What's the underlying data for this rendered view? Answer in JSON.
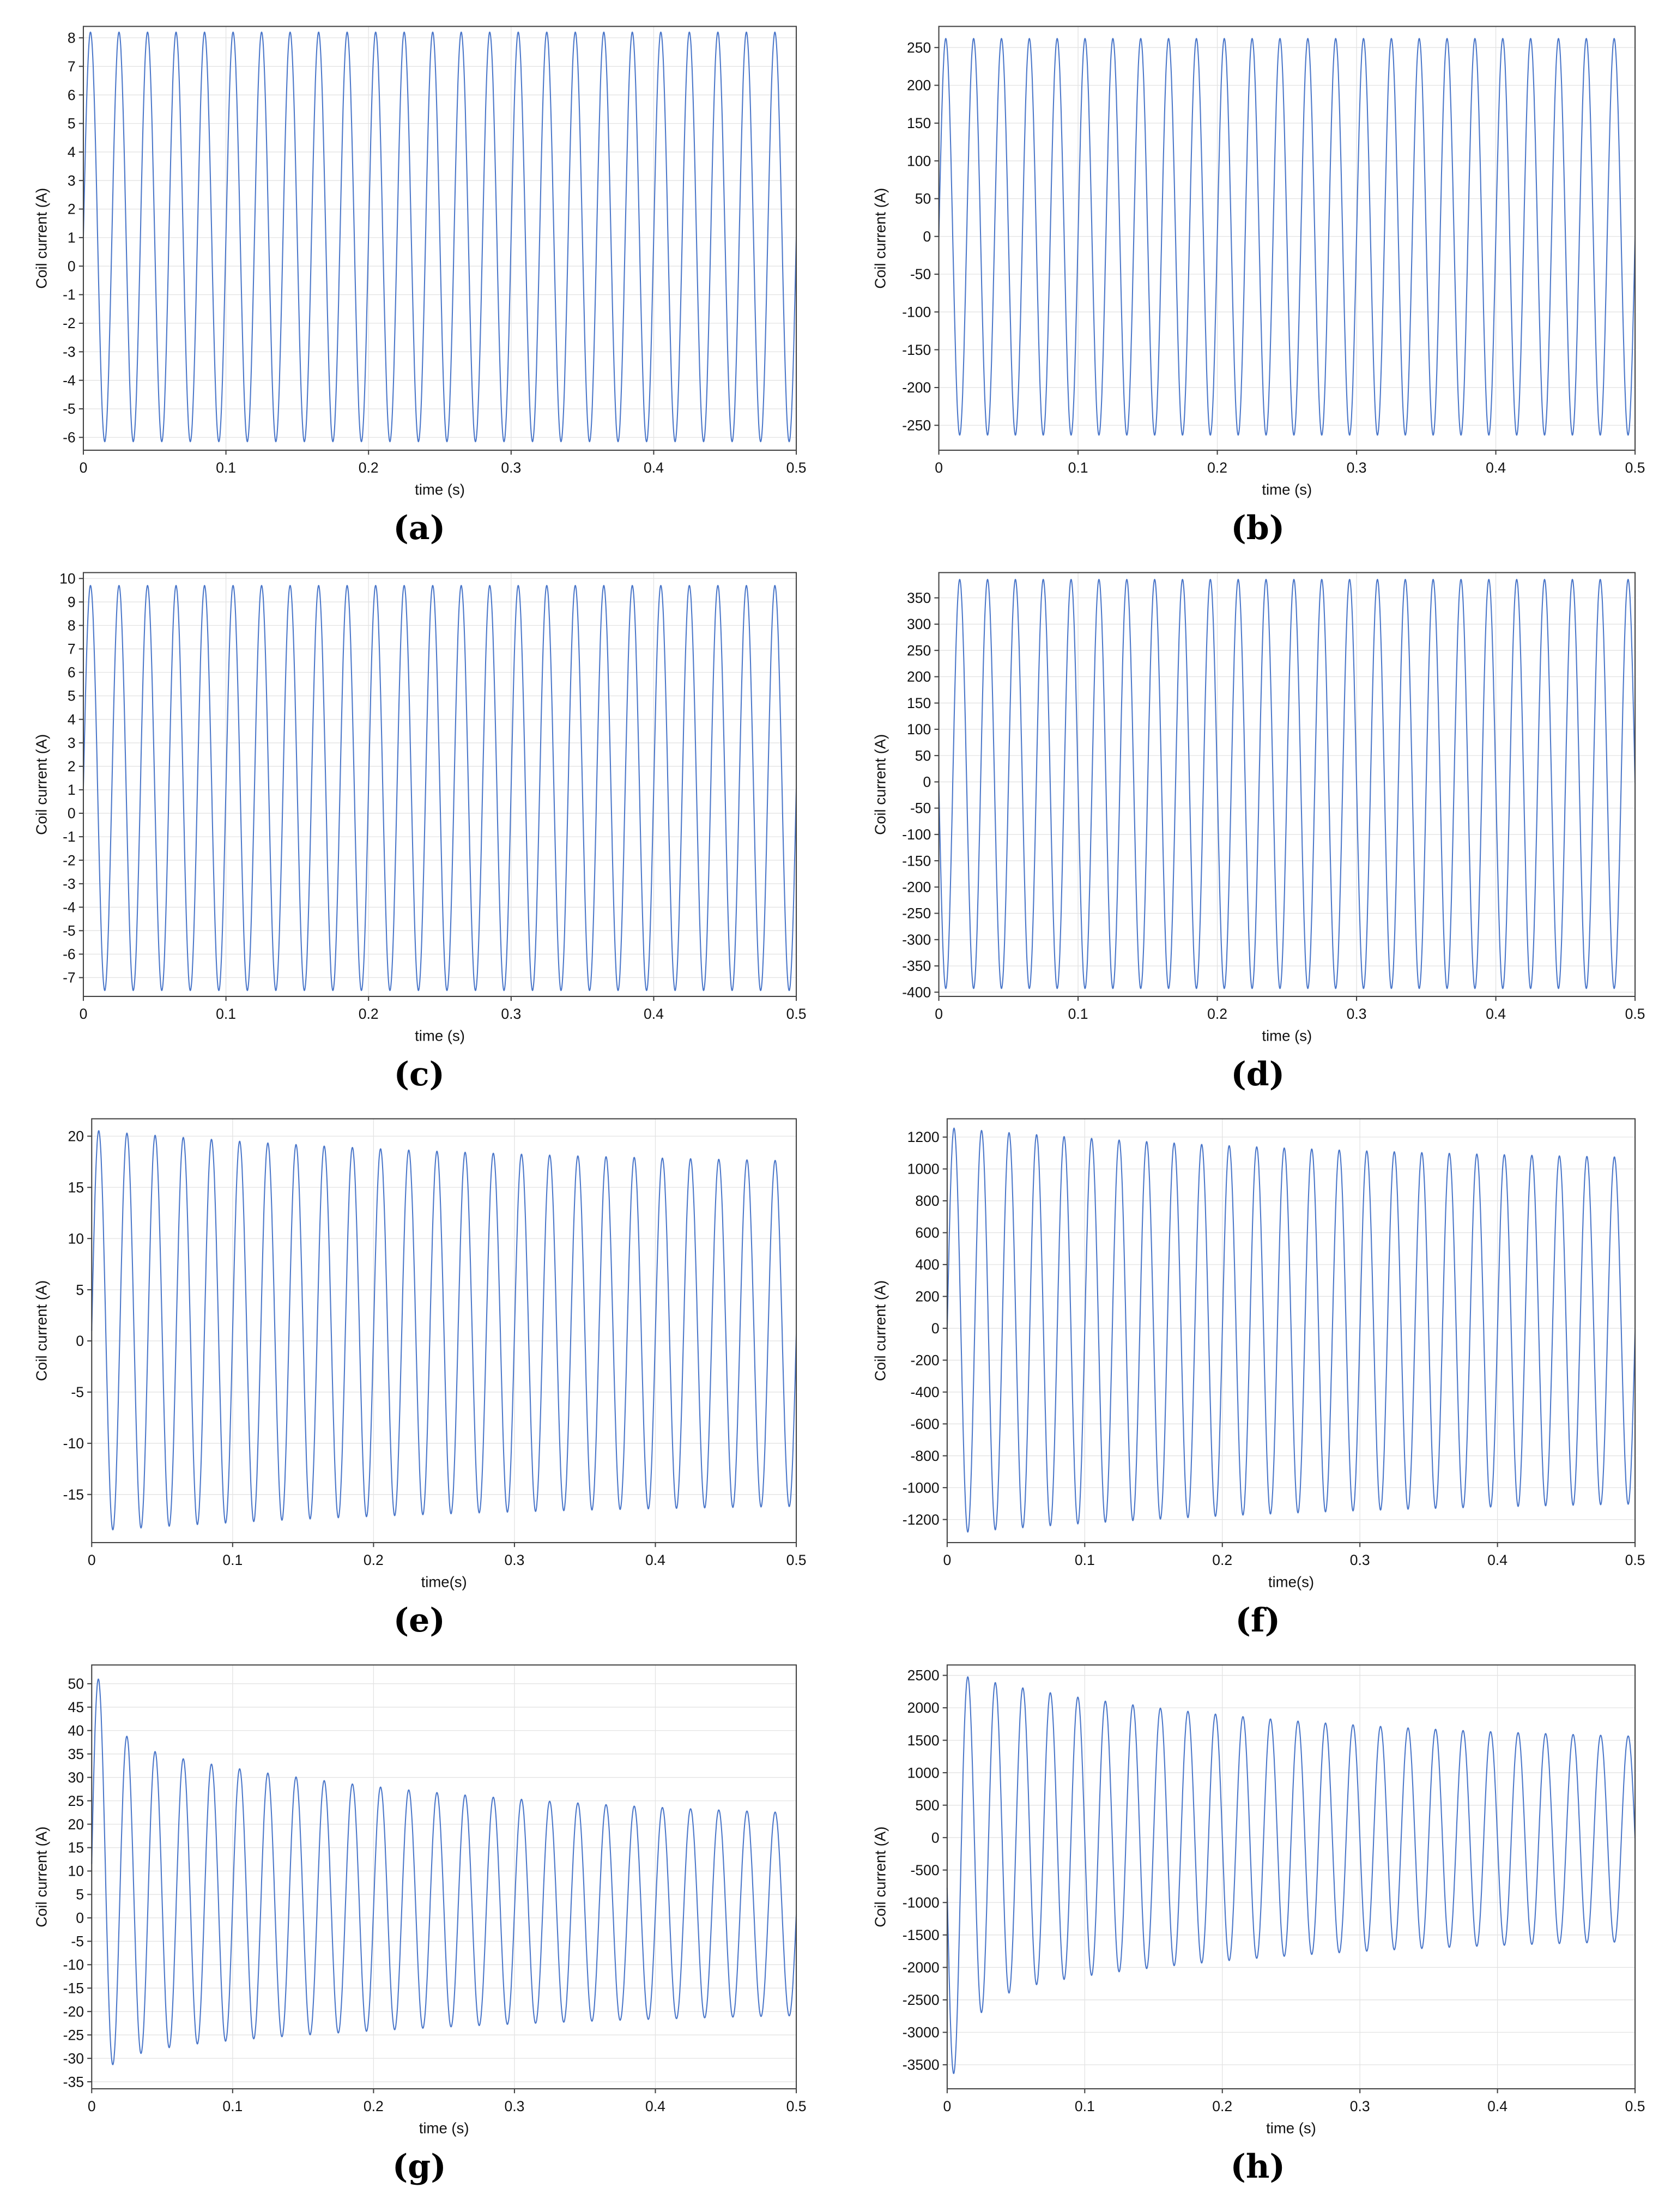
{
  "styles": {
    "line_color": "#4a76c9",
    "grid_color": "#e3e3e3",
    "frame_color": "#404040",
    "text_color": "#111111"
  },
  "chart_data": [
    {
      "id": "a",
      "caption": "(a)",
      "type": "line",
      "title": "",
      "xlabel": "time (s)",
      "ylabel": "Coil current (A)",
      "xlim": [
        0,
        0.5
      ],
      "xticks": [
        0,
        0.1,
        0.2,
        0.3,
        0.4,
        0.5
      ],
      "ylim": [
        -6.45,
        8.4
      ],
      "yticks": [
        -6,
        -5,
        -4,
        -3,
        -2,
        -1,
        0,
        1,
        2,
        3,
        4,
        5,
        6,
        7,
        8
      ],
      "grid": true,
      "legend": false,
      "signal": {
        "waveform": "sine",
        "frequency_hz": 50,
        "phase_deg": 0,
        "pos_envelope": {
          "end": 8.2,
          "terms": []
        },
        "neg_envelope": {
          "end": -6.15,
          "terms": []
        }
      }
    },
    {
      "id": "b",
      "caption": "(b)",
      "type": "line",
      "title": "",
      "xlabel": "time (s)",
      "ylabel": "Coil current (A)",
      "xlim": [
        0,
        0.5
      ],
      "xticks": [
        0,
        0.1,
        0.2,
        0.3,
        0.4,
        0.5
      ],
      "ylim": [
        -283,
        278
      ],
      "yticks": [
        -250,
        -200,
        -150,
        -100,
        -50,
        0,
        50,
        100,
        150,
        200,
        250
      ],
      "grid": true,
      "legend": false,
      "signal": {
        "waveform": "sine",
        "frequency_hz": 50,
        "phase_deg": 0,
        "pos_envelope": {
          "end": 262,
          "terms": []
        },
        "neg_envelope": {
          "end": -263,
          "terms": []
        }
      }
    },
    {
      "id": "c",
      "caption": "(c)",
      "type": "line",
      "title": "",
      "xlabel": "time (s)",
      "ylabel": "Coil current (A)",
      "xlim": [
        0,
        0.5
      ],
      "xticks": [
        0,
        0.1,
        0.2,
        0.3,
        0.4,
        0.5
      ],
      "ylim": [
        -7.8,
        10.25
      ],
      "yticks": [
        -7,
        -6,
        -5,
        -4,
        -3,
        -2,
        -1,
        0,
        1,
        2,
        3,
        4,
        5,
        6,
        7,
        8,
        9,
        10
      ],
      "grid": true,
      "legend": false,
      "signal": {
        "waveform": "sine",
        "frequency_hz": 50,
        "phase_deg": 0,
        "pos_envelope": {
          "end": 9.7,
          "terms": []
        },
        "neg_envelope": {
          "end": -7.55,
          "terms": []
        }
      }
    },
    {
      "id": "d",
      "caption": "(d)",
      "type": "line",
      "title": "",
      "xlabel": "time (s)",
      "ylabel": "Coil current (A)",
      "xlim": [
        0,
        0.5
      ],
      "xticks": [
        0,
        0.1,
        0.2,
        0.3,
        0.4,
        0.5
      ],
      "ylim": [
        -408,
        398
      ],
      "yticks": [
        -400,
        -350,
        -300,
        -250,
        -200,
        -150,
        -100,
        -50,
        0,
        50,
        100,
        150,
        200,
        250,
        300,
        350
      ],
      "grid": true,
      "legend": false,
      "signal": {
        "waveform": "sine",
        "frequency_hz": 50,
        "phase_deg": 180,
        "pos_envelope": {
          "end": 385,
          "terms": []
        },
        "neg_envelope": {
          "end": -393,
          "terms": []
        }
      }
    },
    {
      "id": "e",
      "caption": "(e)",
      "type": "line",
      "title": "",
      "xlabel": "time(s)",
      "ylabel": "Coil current (A)",
      "xlim": [
        0,
        0.5
      ],
      "xticks": [
        0,
        0.1,
        0.2,
        0.3,
        0.4,
        0.5
      ],
      "ylim": [
        -19.7,
        21.7
      ],
      "yticks": [
        -15,
        -10,
        -5,
        0,
        5,
        10,
        15,
        20
      ],
      "grid": true,
      "legend": false,
      "signal": {
        "waveform": "damped_sine",
        "frequency_hz": 50,
        "phase_deg": 0,
        "pos_envelope": {
          "end": 16.9,
          "terms": [
            {
              "amp": 3.7,
              "tau": 0.3
            }
          ]
        },
        "neg_envelope": {
          "end": -15.6,
          "terms": [
            {
              "amp": -3.0,
              "tau": 0.3
            }
          ]
        }
      }
    },
    {
      "id": "f",
      "caption": "(f)",
      "type": "line",
      "title": "",
      "xlabel": "time(s)",
      "ylabel": "Coil current (A)",
      "xlim": [
        0,
        0.5
      ],
      "xticks": [
        0,
        0.1,
        0.2,
        0.3,
        0.4,
        0.5
      ],
      "ylim": [
        -1345,
        1315
      ],
      "yticks": [
        -1200,
        -1000,
        -800,
        -600,
        -400,
        -200,
        0,
        200,
        400,
        600,
        800,
        1000,
        1200
      ],
      "grid": true,
      "legend": false,
      "signal": {
        "waveform": "damped_sine",
        "frequency_hz": 50,
        "phase_deg": 0,
        "pos_envelope": {
          "end": 1030,
          "terms": [
            {
              "amp": 230,
              "tau": 0.3
            }
          ]
        },
        "neg_envelope": {
          "end": -1060,
          "terms": [
            {
              "amp": -230,
              "tau": 0.3
            }
          ]
        }
      }
    },
    {
      "id": "g",
      "caption": "(g)",
      "type": "line",
      "title": "",
      "xlabel": "time (s)",
      "ylabel": "Coil current (A)",
      "xlim": [
        0,
        0.5
      ],
      "xticks": [
        0,
        0.1,
        0.2,
        0.3,
        0.4,
        0.5
      ],
      "ylim": [
        -36.5,
        54
      ],
      "yticks": [
        -35,
        -30,
        -25,
        -20,
        -15,
        -10,
        -5,
        0,
        5,
        10,
        15,
        20,
        25,
        30,
        35,
        40,
        45,
        50
      ],
      "grid": true,
      "legend": false,
      "signal": {
        "waveform": "damped_sine",
        "frequency_hz": 50,
        "phase_deg": 0,
        "pos_envelope": {
          "end": 20,
          "terms": [
            {
              "amp": 18,
              "tau": 0.25
            },
            {
              "amp": 20,
              "tau": 0.012
            }
          ]
        },
        "neg_envelope": {
          "end": -19,
          "terms": [
            {
              "amp": -10,
              "tau": 0.3
            },
            {
              "amp": -6,
              "tau": 0.02
            }
          ]
        }
      }
    },
    {
      "id": "h",
      "caption": "(h)",
      "type": "line",
      "title": "",
      "xlabel": "time (s)",
      "ylabel": "Coil current (A)",
      "xlim": [
        0,
        0.5
      ],
      "xticks": [
        0,
        0.1,
        0.2,
        0.3,
        0.4,
        0.5
      ],
      "ylim": [
        -3870,
        2660
      ],
      "yticks": [
        -3500,
        -3000,
        -2500,
        -2000,
        -1500,
        -1000,
        -500,
        0,
        500,
        1000,
        1500,
        2000,
        2500
      ],
      "grid": true,
      "legend": false,
      "signal": {
        "waveform": "damped_sine",
        "frequency_hz": 50,
        "phase_deg": 180,
        "pos_envelope": {
          "end": 1450,
          "terms": [
            {
              "amp": 1100,
              "tau": 0.22
            }
          ]
        },
        "neg_envelope": {
          "end": -1500,
          "terms": [
            {
              "amp": -1000,
              "tau": 0.22
            },
            {
              "amp": -1600,
              "tau": 0.015
            }
          ]
        }
      }
    }
  ]
}
